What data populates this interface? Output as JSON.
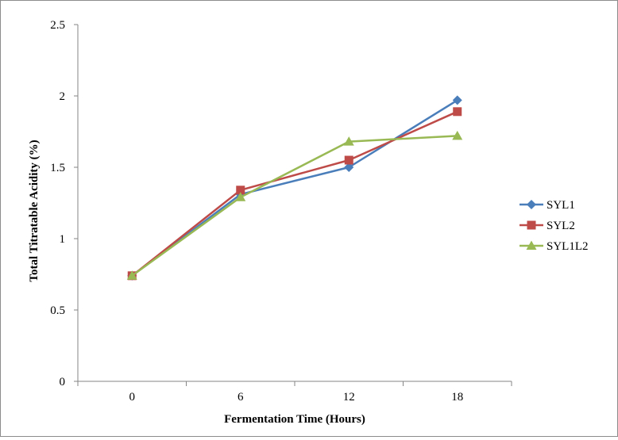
{
  "chart_data": {
    "type": "line",
    "title": "",
    "xlabel": "Fermentation Time (Hours)",
    "ylabel": "Total Titratable Acidity (%)",
    "categories": [
      "0",
      "6",
      "12",
      "18"
    ],
    "ylim": [
      0,
      2.5
    ],
    "yticks": [
      "0",
      "0.5",
      "1",
      "1.5",
      "2",
      "2.5"
    ],
    "grid": false,
    "legend_position": "right",
    "series": [
      {
        "name": "SYL1",
        "values": [
          0.74,
          1.31,
          1.5,
          1.97
        ],
        "color": "#4a7ebb",
        "marker": "diamond"
      },
      {
        "name": "SYL2",
        "values": [
          0.74,
          1.34,
          1.55,
          1.89
        ],
        "color": "#be4b48",
        "marker": "square"
      },
      {
        "name": "SYL1L2",
        "values": [
          0.74,
          1.29,
          1.68,
          1.72
        ],
        "color": "#98b954",
        "marker": "triangle"
      }
    ]
  }
}
